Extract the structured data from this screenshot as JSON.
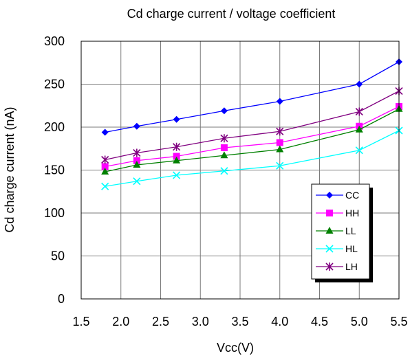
{
  "chart_data": {
    "type": "line",
    "title": "Cd charge current  / voltage coefficient",
    "xlabel": "Vcc(V)",
    "ylabel": "Cd charge current (nA)",
    "xlim": [
      1.5,
      5.5
    ],
    "ylim": [
      0,
      300
    ],
    "x_ticks": [
      "1.5",
      "2.0",
      "2.5",
      "3.0",
      "3.5",
      "4.0",
      "4.5",
      "5.0",
      "5.5"
    ],
    "y_ticks": [
      "0",
      "50",
      "100",
      "150",
      "200",
      "250",
      "300"
    ],
    "grid": true,
    "legend_position": "right",
    "x": [
      1.8,
      2.2,
      2.7,
      3.3,
      4.0,
      5.0,
      5.5
    ],
    "series": [
      {
        "name": "CC",
        "color": "#0000ff",
        "marker": "diamond",
        "values": [
          194,
          201,
          209,
          219,
          230,
          250,
          276
        ]
      },
      {
        "name": "HH",
        "color": "#ff00ff",
        "marker": "square",
        "values": [
          154,
          161,
          166,
          176,
          182,
          201,
          224
        ]
      },
      {
        "name": "LL",
        "color": "#008000",
        "marker": "triangle",
        "values": [
          148,
          156,
          161,
          167,
          174,
          197,
          221
        ]
      },
      {
        "name": "HL",
        "color": "#00ffff",
        "marker": "x",
        "values": [
          131,
          137,
          144,
          149,
          155,
          173,
          196
        ]
      },
      {
        "name": "LH",
        "color": "#800080",
        "marker": "star",
        "values": [
          162,
          170,
          177,
          187,
          195,
          218,
          242
        ]
      }
    ]
  }
}
